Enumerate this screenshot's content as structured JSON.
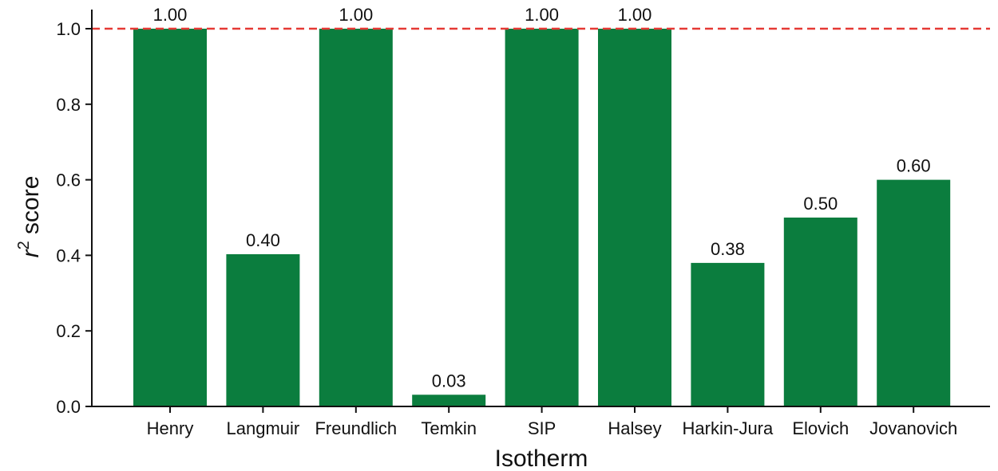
{
  "chart_data": {
    "type": "bar",
    "title": "",
    "xlabel": "Isotherm",
    "ylabel": "r² score",
    "ylabel_parts": {
      "base": "r",
      "superscript": "2",
      "rest": " score"
    },
    "categories": [
      "Henry",
      "Langmuir",
      "Freundlich",
      "Temkin",
      "SIP",
      "Halsey",
      "Harkin-Jura",
      "Elovich",
      "Jovanovich"
    ],
    "values": [
      1.0,
      0.403,
      1.0,
      0.031,
      1.0,
      1.0,
      0.38,
      0.5,
      0.6
    ],
    "data_labels": [
      "1.00",
      "0.40",
      "1.00",
      "0.03",
      "1.00",
      "1.00",
      "0.38",
      "0.50",
      "0.60"
    ],
    "ylim": [
      0,
      1.05
    ],
    "yticks": [
      0.0,
      0.2,
      0.4,
      0.6,
      0.8,
      1.0
    ],
    "ytick_labels": [
      "0.0",
      "0.2",
      "0.4",
      "0.6",
      "0.8",
      "1.0"
    ],
    "reference_line": {
      "y": 1.0,
      "style": "dashed",
      "color": "#e53935"
    },
    "bar_color": "#0b7d3e",
    "grid": false,
    "legend": "none"
  }
}
